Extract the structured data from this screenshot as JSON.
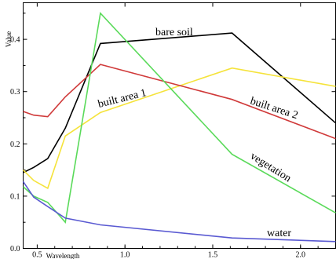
{
  "chart_data": {
    "type": "line",
    "title": "",
    "xlabel": "Wavelength",
    "ylabel": "Value",
    "xlim": [
      0.42,
      2.2
    ],
    "ylim": [
      0,
      0.47
    ],
    "x_ticks": [
      {
        "value": 0.5,
        "label": "0.5"
      },
      {
        "value": 1.0,
        "label": "1.0"
      },
      {
        "value": 1.5,
        "label": "1.5"
      },
      {
        "value": 2.0,
        "label": "2.0"
      }
    ],
    "y_ticks": [
      {
        "value": 0.0,
        "label": "0.0"
      },
      {
        "value": 0.1,
        "label": "0.1"
      },
      {
        "value": 0.2,
        "label": "0.2"
      },
      {
        "value": 0.3,
        "label": "0.3"
      },
      {
        "value": 0.4,
        "label": "0.4"
      }
    ],
    "grid": false,
    "legend": "none",
    "series": [
      {
        "name": "bare soil",
        "color": "#000000",
        "x": [
          0.42,
          0.48,
          0.56,
          0.66,
          0.86,
          1.61,
          2.2
        ],
        "y": [
          0.145,
          0.155,
          0.172,
          0.23,
          0.392,
          0.412,
          0.24
        ]
      },
      {
        "name": "built area 1",
        "color": "#f5e33b",
        "x": [
          0.42,
          0.48,
          0.56,
          0.66,
          0.86,
          1.61,
          2.2
        ],
        "y": [
          0.15,
          0.13,
          0.115,
          0.215,
          0.26,
          0.345,
          0.31
        ]
      },
      {
        "name": "built area 2",
        "color": "#d03a3a",
        "x": [
          0.42,
          0.48,
          0.56,
          0.66,
          0.86,
          1.61,
          2.2
        ],
        "y": [
          0.262,
          0.255,
          0.252,
          0.29,
          0.352,
          0.285,
          0.21
        ]
      },
      {
        "name": "vegetation",
        "color": "#5ada5a",
        "x": [
          0.42,
          0.48,
          0.56,
          0.66,
          0.86,
          1.61,
          2.2
        ],
        "y": [
          0.118,
          0.1,
          0.088,
          0.05,
          0.45,
          0.18,
          0.068
        ]
      },
      {
        "name": "water",
        "color": "#5a5ad2",
        "x": [
          0.42,
          0.48,
          0.56,
          0.66,
          0.86,
          1.61,
          2.2
        ],
        "y": [
          0.128,
          0.098,
          0.08,
          0.058,
          0.045,
          0.02,
          0.013
        ]
      }
    ]
  }
}
